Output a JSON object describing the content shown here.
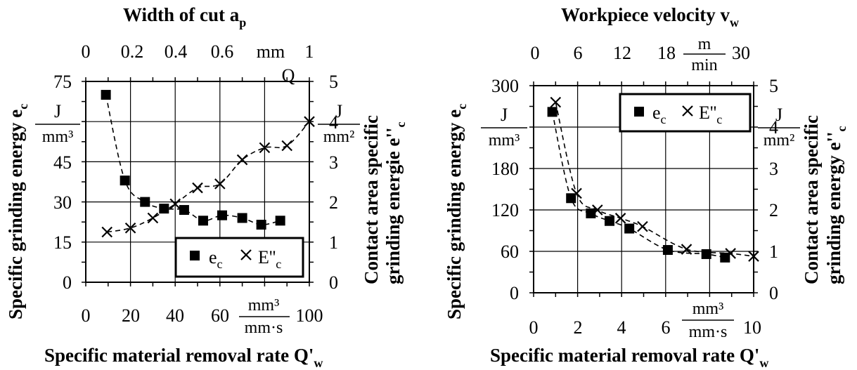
{
  "chart_data": [
    {
      "type": "scatter",
      "title": "Width of cut a",
      "title_subscript": "p",
      "top_axis": {
        "ticks": [
          "0",
          "0.2",
          "0.4",
          "0.6",
          "1"
        ],
        "extra_ticks": [
          "0.8"
        ],
        "labels_printed": [
          "0",
          "0.2",
          "0.4",
          "0.6",
          "mm",
          "1"
        ],
        "unit": "mm"
      },
      "y_left": {
        "label_main": "Specific grinding energy e",
        "label_sub": "c",
        "ticks": [
          "0",
          "15",
          "30",
          "45",
          "75"
        ],
        "range": [
          0,
          75
        ],
        "unit_num": "J",
        "unit_den": "mm³"
      },
      "y_right": {
        "label_line1": "Contact area specific",
        "label_line2": "grinding energie e''",
        "label_sub": "c",
        "ticks": [
          "0",
          "1",
          "2",
          "3",
          "4",
          "5"
        ],
        "range": [
          0,
          5
        ],
        "unit_num": "J",
        "unit_den": "mm²"
      },
      "x_bottom": {
        "label_main": "Specific material removal rate Q'",
        "label_sub": "w",
        "ticks": [
          "0",
          "20",
          "40",
          "60",
          "100"
        ],
        "range": [
          0,
          100
        ],
        "unit_num": "mm³",
        "unit_den": "mm·s"
      },
      "top_marker": "Q",
      "grid": true,
      "legend": {
        "position": "bottom-right",
        "series_ec": "e",
        "series_ec_sub": "c",
        "series_Ec": "E''",
        "series_Ec_sub": "c"
      },
      "series": [
        {
          "key": "ec",
          "marker": "square",
          "axis": "left",
          "points": [
            [
              9,
              70
            ],
            [
              17.5,
              38
            ],
            [
              26.5,
              30
            ],
            [
              35,
              27.5
            ],
            [
              44,
              27
            ],
            [
              52.5,
              23
            ],
            [
              61,
              25
            ],
            [
              70,
              24
            ],
            [
              78.5,
              21.5
            ],
            [
              87,
              23
            ]
          ]
        },
        {
          "key": "Ec",
          "marker": "cross",
          "axis": "right",
          "points": [
            [
              9.5,
              1.25
            ],
            [
              20,
              1.35
            ],
            [
              30,
              1.6
            ],
            [
              40,
              1.95
            ],
            [
              50,
              2.35
            ],
            [
              60,
              2.45
            ],
            [
              70,
              3.05
            ],
            [
              80,
              3.35
            ],
            [
              90,
              3.4
            ],
            [
              100,
              4
            ]
          ]
        }
      ],
      "fit_curves": [
        "dashed"
      ]
    },
    {
      "type": "scatter",
      "title": "Workpiece velocity v",
      "title_subscript": "w",
      "top_axis": {
        "ticks": [
          "0",
          "6",
          "12",
          "18",
          "30"
        ],
        "extra_ticks": [
          "24"
        ],
        "unit_num": "m",
        "unit_den": "min"
      },
      "y_left": {
        "label_main": "Specific grinding energy e",
        "label_sub": "c",
        "ticks": [
          "0",
          "60",
          "120",
          "180",
          "300"
        ],
        "range": [
          0,
          300
        ],
        "unit_num": "J",
        "unit_den": "mm³"
      },
      "y_right": {
        "label_line1": "Contact area specific",
        "label_line2": "grinding energy e''",
        "label_sub": "c",
        "ticks": [
          "0",
          "1",
          "2",
          "3",
          "4",
          "5"
        ],
        "range": [
          0,
          5
        ],
        "unit_num": "J",
        "unit_den": "mm²"
      },
      "x_bottom": {
        "label_main": "Specific material removal rate Q'",
        "label_sub": "w",
        "ticks": [
          "0",
          "2",
          "4",
          "6",
          "10"
        ],
        "range": [
          0,
          10
        ],
        "unit_num": "mm³",
        "unit_den": "mm·s"
      },
      "grid": true,
      "legend": {
        "position": "top-right",
        "series_ec": "e",
        "series_ec_sub": "c",
        "series_Ec": "E''",
        "series_Ec_sub": "c"
      },
      "series": [
        {
          "key": "ec",
          "marker": "square",
          "axis": "left",
          "points": [
            [
              0.85,
              262
            ],
            [
              1.7,
              137
            ],
            [
              2.6,
              115
            ],
            [
              3.45,
              104
            ],
            [
              4.35,
              93
            ],
            [
              6.1,
              62
            ],
            [
              7.85,
              56
            ],
            [
              8.7,
              51
            ]
          ]
        },
        {
          "key": "Ec",
          "marker": "cross",
          "axis": "right",
          "points": [
            [
              1.0,
              4.6
            ],
            [
              1.95,
              2.4
            ],
            [
              2.9,
              2.0
            ],
            [
              3.95,
              1.8
            ],
            [
              4.95,
              1.6
            ],
            [
              6.95,
              1.05
            ],
            [
              8.95,
              0.95
            ],
            [
              10,
              0.88
            ]
          ]
        }
      ],
      "fit_curves": [
        "dashed"
      ]
    }
  ]
}
